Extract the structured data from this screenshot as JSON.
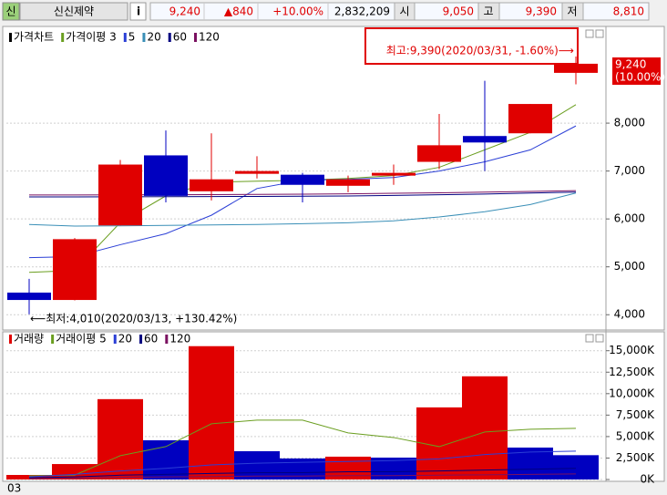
{
  "header": {
    "icon": "신",
    "name": "신신제약",
    "info": "i",
    "price": "9,240",
    "change": "▲840",
    "rate": "+10.00%",
    "volume": "2,832,209",
    "open_label": "시",
    "open": "9,050",
    "high_label": "고",
    "high": "9,390",
    "low_label": "저",
    "low": "8,810"
  },
  "chart_data": [
    {
      "type": "candlestick",
      "title": "가격차트",
      "title_color": "#000000",
      "open": [
        4462,
        4308,
        5865,
        7327,
        6577,
        6942,
        6923,
        6692,
        6904,
        7192,
        7731,
        7788,
        9050
      ],
      "high": [
        4750,
        5600,
        7230,
        7846,
        7788,
        7308,
        6962,
        6904,
        7135,
        8192,
        8885,
        8400,
        9390
      ],
      "low": [
        4010,
        4300,
        5865,
        6346,
        6385,
        6846,
        6346,
        6558,
        6712,
        7038,
        7000,
        7788,
        8810
      ],
      "close": [
        4308,
        5577,
        7135,
        6481,
        6827,
        7000,
        6712,
        6827,
        6962,
        7538,
        7596,
        8400,
        9240
      ],
      "up_color": "#e00000",
      "down_color": "#0000c0",
      "ylim": [
        3700,
        10000
      ],
      "yticks": [
        {
          "value": 4000,
          "label": "4,000"
        },
        {
          "value": 5000,
          "label": "5,000"
        },
        {
          "value": 6000,
          "label": "6,000"
        },
        {
          "value": 7000,
          "label": "7,000"
        },
        {
          "value": 8000,
          "label": "8,000"
        }
      ],
      "grid": true,
      "series": [
        {
          "name": "가격이평 3",
          "color": "#6a9e1f",
          "values": [
            4885,
            4923,
            5923,
            6481,
            6769,
            6788,
            6808,
            6846,
            6904,
            7077,
            7442,
            7808,
            8385
          ]
        },
        {
          "name": "5",
          "color": "#2b3fd6",
          "values": [
            5192,
            5212,
            5462,
            5692,
            6077,
            6635,
            6808,
            6827,
            6865,
            7000,
            7192,
            7442,
            7942
          ]
        },
        {
          "name": "20",
          "color": "#3a8fb7",
          "values": [
            5885,
            5850,
            5855,
            5865,
            5875,
            5885,
            5900,
            5920,
            5960,
            6040,
            6150,
            6300,
            6540
          ]
        },
        {
          "name": "60",
          "color": "#000080",
          "values": [
            6460,
            6460,
            6462,
            6465,
            6468,
            6470,
            6475,
            6480,
            6490,
            6505,
            6520,
            6540,
            6560
          ]
        },
        {
          "name": "120",
          "color": "#7a1060",
          "values": [
            6500,
            6500,
            6502,
            6505,
            6508,
            6512,
            6518,
            6525,
            6535,
            6545,
            6560,
            6575,
            6590
          ]
        }
      ],
      "annotations": [
        "최고:9,390(2020/03/31, -1.60%)⟶",
        "⟵최저:4,010(2020/03/13, +130.42%)"
      ],
      "last_labels": [
        "9,240",
        "(10.00%)"
      ]
    },
    {
      "type": "bar",
      "categories": [
        "03",
        null,
        null,
        null,
        null,
        null,
        null,
        null,
        null,
        null,
        null,
        null,
        null
      ],
      "ylim": [
        0,
        17200
      ],
      "yticks": [
        {
          "value": 0,
          "label": "0K"
        },
        {
          "value": 2500,
          "label": "2,500K"
        },
        {
          "value": 5000,
          "label": "5,000K"
        },
        {
          "value": 7500,
          "label": "7,500K"
        },
        {
          "value": 10000,
          "label": "10,000K"
        },
        {
          "value": 12500,
          "label": "12,500K"
        },
        {
          "value": 15000,
          "label": "15,000K"
        }
      ],
      "grid": true,
      "series": [
        {
          "name": "거래량",
          "type": "bar",
          "color": "#e00000",
          "colors": [
            "#e00000",
            "#e00000",
            "#e00000",
            "#0000c0",
            "#e00000",
            "#0000c0",
            "#0000c0",
            "#e00000",
            "#0000c0",
            "#e00000",
            "#e00000",
            "#0000c0",
            "#0000c0"
          ],
          "values": [
            530,
            1800,
            9360,
            4570,
            15530,
            3300,
            2450,
            2660,
            2550,
            8400,
            12020,
            3720,
            2832
          ]
        },
        {
          "name": "거래이평 5",
          "type": "line",
          "color": "#6a9e1f",
          "values": [
            430,
            520,
            2770,
            3830,
            6490,
            6915,
            6915,
            5430,
            4890,
            3830,
            5530,
            5850,
            5960
          ]
        },
        {
          "name": "20",
          "type": "line",
          "color": "#2b3fd6",
          "values": [
            300,
            600,
            1000,
            1300,
            1700,
            1900,
            2000,
            2100,
            2200,
            2400,
            2900,
            3200,
            3300
          ]
        },
        {
          "name": "60",
          "type": "line",
          "color": "#000080",
          "values": [
            200,
            300,
            500,
            600,
            700,
            800,
            800,
            900,
            900,
            1000,
            1100,
            1200,
            1300
          ]
        },
        {
          "name": "120",
          "type": "line",
          "color": "#7a1060",
          "values": [
            100,
            150,
            250,
            300,
            350,
            400,
            400,
            450,
            450,
            500,
            550,
            600,
            650
          ]
        }
      ]
    }
  ]
}
